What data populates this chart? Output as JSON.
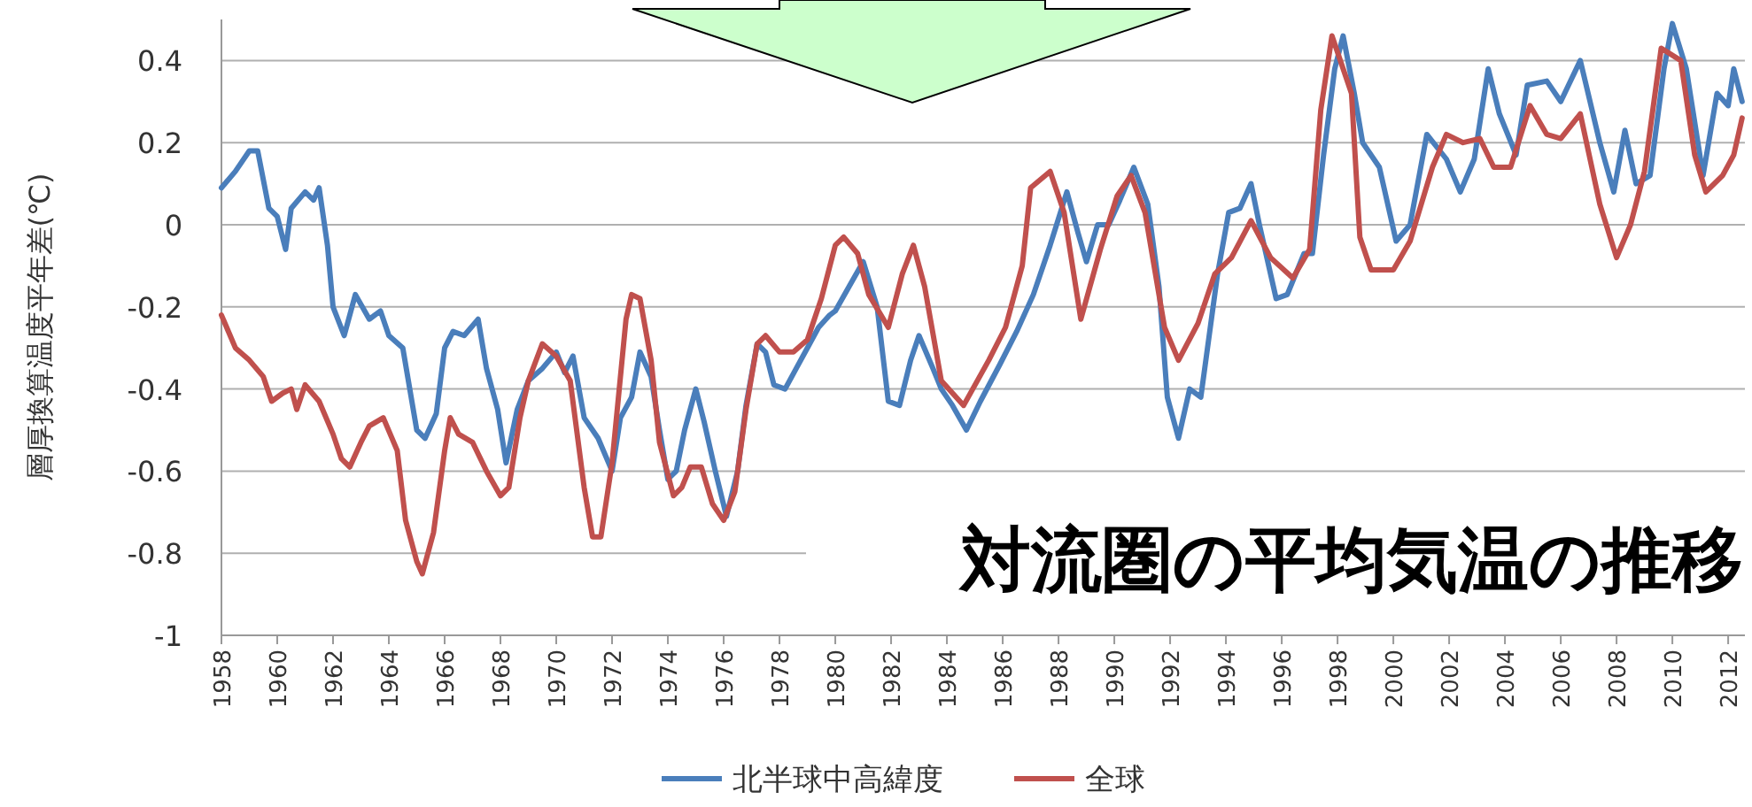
{
  "chart_data": {
    "type": "line",
    "title": "対流圏の平均気温の推移",
    "ylabel": "層厚換算温度平年差(℃)",
    "xlim": [
      1958,
      2012.6
    ],
    "ylim": [
      -1,
      0.5
    ],
    "xticks": [
      1958,
      1960,
      1962,
      1964,
      1966,
      1968,
      1970,
      1972,
      1974,
      1976,
      1978,
      1980,
      1982,
      1984,
      1986,
      1988,
      1990,
      1992,
      1994,
      1996,
      1998,
      2000,
      2002,
      2004,
      2006,
      2008,
      2010,
      2012
    ],
    "yticks": [
      -1,
      -0.8,
      -0.6,
      -0.4,
      -0.2,
      0,
      0.2,
      0.4
    ],
    "grid": "y",
    "legend": "bottom",
    "line_style": "solid",
    "marker": "none",
    "series": [
      {
        "name": "北半球中高緯度",
        "color": "#4a7ebb",
        "x": [
          1958.0,
          1958.5,
          1959.0,
          1959.3,
          1959.7,
          1960.0,
          1960.3,
          1960.5,
          1961.0,
          1961.3,
          1961.5,
          1961.8,
          1962.0,
          1962.4,
          1962.8,
          1963.3,
          1963.7,
          1964.0,
          1964.5,
          1965.0,
          1965.3,
          1965.7,
          1966.0,
          1966.3,
          1966.7,
          1967.2,
          1967.5,
          1967.9,
          1968.2,
          1968.6,
          1969.0,
          1969.5,
          1970.0,
          1970.3,
          1970.6,
          1971.0,
          1971.5,
          1972.0,
          1972.3,
          1972.7,
          1973.0,
          1973.4,
          1973.7,
          1974.0,
          1974.3,
          1974.6,
          1975.0,
          1975.3,
          1975.7,
          1976.1,
          1976.5,
          1976.8,
          1977.2,
          1977.5,
          1977.8,
          1978.2,
          1978.6,
          1979.0,
          1979.4,
          1979.8,
          1980.0,
          1980.5,
          1981.0,
          1981.5,
          1981.9,
          1982.3,
          1982.7,
          1983.0,
          1983.5,
          1983.8,
          1984.2,
          1984.7,
          1985.2,
          1985.9,
          1986.5,
          1987.1,
          1987.7,
          1988.3,
          1988.7,
          1989.0,
          1989.4,
          1989.8,
          1990.2,
          1990.7,
          1991.2,
          1991.6,
          1991.9,
          1992.3,
          1992.7,
          1993.1,
          1993.7,
          1994.1,
          1994.5,
          1994.9,
          1995.2,
          1995.8,
          1996.2,
          1996.8,
          1997.1,
          1997.5,
          1997.9,
          1998.2,
          1998.6,
          1998.9,
          1999.5,
          2000.1,
          2000.6,
          2001.2,
          2001.9,
          2002.4,
          2002.9,
          2003.4,
          2003.8,
          2004.4,
          2004.8,
          2005.5,
          2006.0,
          2006.7,
          2007.4,
          2007.9,
          2008.3,
          2008.7,
          2009.2,
          2009.7,
          2010.0,
          2010.5,
          2011.1,
          2011.6,
          2012.0,
          2012.2,
          2012.5
        ],
        "values": [
          0.09,
          0.13,
          0.18,
          0.18,
          0.04,
          0.02,
          -0.06,
          0.04,
          0.08,
          0.06,
          0.09,
          -0.05,
          -0.2,
          -0.27,
          -0.17,
          -0.23,
          -0.21,
          -0.27,
          -0.3,
          -0.5,
          -0.52,
          -0.46,
          -0.3,
          -0.26,
          -0.27,
          -0.23,
          -0.35,
          -0.45,
          -0.58,
          -0.45,
          -0.38,
          -0.35,
          -0.31,
          -0.36,
          -0.32,
          -0.47,
          -0.52,
          -0.6,
          -0.47,
          -0.42,
          -0.31,
          -0.37,
          -0.5,
          -0.62,
          -0.6,
          -0.5,
          -0.4,
          -0.48,
          -0.6,
          -0.71,
          -0.6,
          -0.44,
          -0.29,
          -0.31,
          -0.39,
          -0.4,
          -0.35,
          -0.3,
          -0.25,
          -0.22,
          -0.21,
          -0.15,
          -0.09,
          -0.2,
          -0.43,
          -0.44,
          -0.33,
          -0.27,
          -0.35,
          -0.4,
          -0.44,
          -0.5,
          -0.43,
          -0.34,
          -0.26,
          -0.17,
          -0.05,
          0.08,
          -0.02,
          -0.09,
          0.0,
          0.0,
          0.06,
          0.14,
          0.05,
          -0.15,
          -0.42,
          -0.52,
          -0.4,
          -0.42,
          -0.12,
          0.03,
          0.04,
          0.1,
          0.0,
          -0.18,
          -0.17,
          -0.07,
          -0.07,
          0.17,
          0.38,
          0.46,
          0.32,
          0.2,
          0.14,
          -0.04,
          0.0,
          0.22,
          0.16,
          0.08,
          0.16,
          0.38,
          0.27,
          0.17,
          0.34,
          0.35,
          0.3,
          0.4,
          0.2,
          0.08,
          0.23,
          0.1,
          0.12,
          0.38,
          0.49,
          0.38,
          0.12,
          0.32,
          0.29,
          0.38,
          0.3
        ]
      },
      {
        "name": "全球",
        "color": "#c0504d",
        "x": [
          1958.0,
          1958.5,
          1959.0,
          1959.5,
          1959.8,
          1960.2,
          1960.5,
          1960.7,
          1961.0,
          1961.5,
          1962.0,
          1962.3,
          1962.6,
          1963.0,
          1963.3,
          1963.8,
          1964.3,
          1964.6,
          1965.0,
          1965.2,
          1965.6,
          1966.0,
          1966.2,
          1966.5,
          1967.0,
          1967.5,
          1968.0,
          1968.3,
          1968.7,
          1969.0,
          1969.5,
          1970.0,
          1970.5,
          1971.0,
          1971.3,
          1971.6,
          1972.0,
          1972.5,
          1972.7,
          1973.0,
          1973.4,
          1973.7,
          1974.2,
          1974.5,
          1974.8,
          1975.2,
          1975.6,
          1976.0,
          1976.4,
          1976.8,
          1977.2,
          1977.5,
          1978.0,
          1978.5,
          1979.0,
          1979.5,
          1980.0,
          1980.3,
          1980.8,
          1981.2,
          1981.9,
          1982.4,
          1982.8,
          1983.2,
          1983.8,
          1984.6,
          1985.5,
          1986.1,
          1986.7,
          1987.0,
          1987.7,
          1988.2,
          1988.8,
          1989.5,
          1990.1,
          1990.6,
          1991.1,
          1991.8,
          1992.3,
          1993.0,
          1993.6,
          1994.2,
          1994.9,
          1995.6,
          1996.4,
          1997.0,
          1997.4,
          1997.8,
          1998.5,
          1998.8,
          1999.2,
          2000.0,
          2000.6,
          2001.4,
          2001.9,
          2002.5,
          2003.1,
          2003.6,
          2004.2,
          2004.9,
          2005.5,
          2006.0,
          2006.7,
          2007.4,
          2008.0,
          2008.5,
          2009.0,
          2009.6,
          2010.3,
          2010.8,
          2011.2,
          2011.8,
          2012.2,
          2012.5
        ],
        "values": [
          -0.22,
          -0.3,
          -0.33,
          -0.37,
          -0.43,
          -0.41,
          -0.4,
          -0.45,
          -0.39,
          -0.43,
          -0.51,
          -0.57,
          -0.59,
          -0.53,
          -0.49,
          -0.47,
          -0.55,
          -0.72,
          -0.82,
          -0.85,
          -0.75,
          -0.55,
          -0.47,
          -0.51,
          -0.53,
          -0.6,
          -0.66,
          -0.64,
          -0.47,
          -0.38,
          -0.29,
          -0.32,
          -0.38,
          -0.64,
          -0.76,
          -0.76,
          -0.58,
          -0.23,
          -0.17,
          -0.18,
          -0.33,
          -0.53,
          -0.66,
          -0.64,
          -0.59,
          -0.59,
          -0.68,
          -0.72,
          -0.65,
          -0.45,
          -0.29,
          -0.27,
          -0.31,
          -0.31,
          -0.28,
          -0.18,
          -0.05,
          -0.03,
          -0.07,
          -0.17,
          -0.25,
          -0.12,
          -0.05,
          -0.15,
          -0.38,
          -0.44,
          -0.33,
          -0.25,
          -0.1,
          0.09,
          0.13,
          0.03,
          -0.23,
          -0.06,
          0.07,
          0.12,
          0.03,
          -0.25,
          -0.33,
          -0.24,
          -0.12,
          -0.08,
          0.01,
          -0.08,
          -0.13,
          -0.06,
          0.28,
          0.46,
          0.32,
          -0.03,
          -0.11,
          -0.11,
          -0.04,
          0.14,
          0.22,
          0.2,
          0.21,
          0.14,
          0.14,
          0.29,
          0.22,
          0.21,
          0.27,
          0.05,
          -0.08,
          0.0,
          0.13,
          0.43,
          0.4,
          0.17,
          0.08,
          0.12,
          0.17,
          0.26
        ]
      }
    ]
  }
}
